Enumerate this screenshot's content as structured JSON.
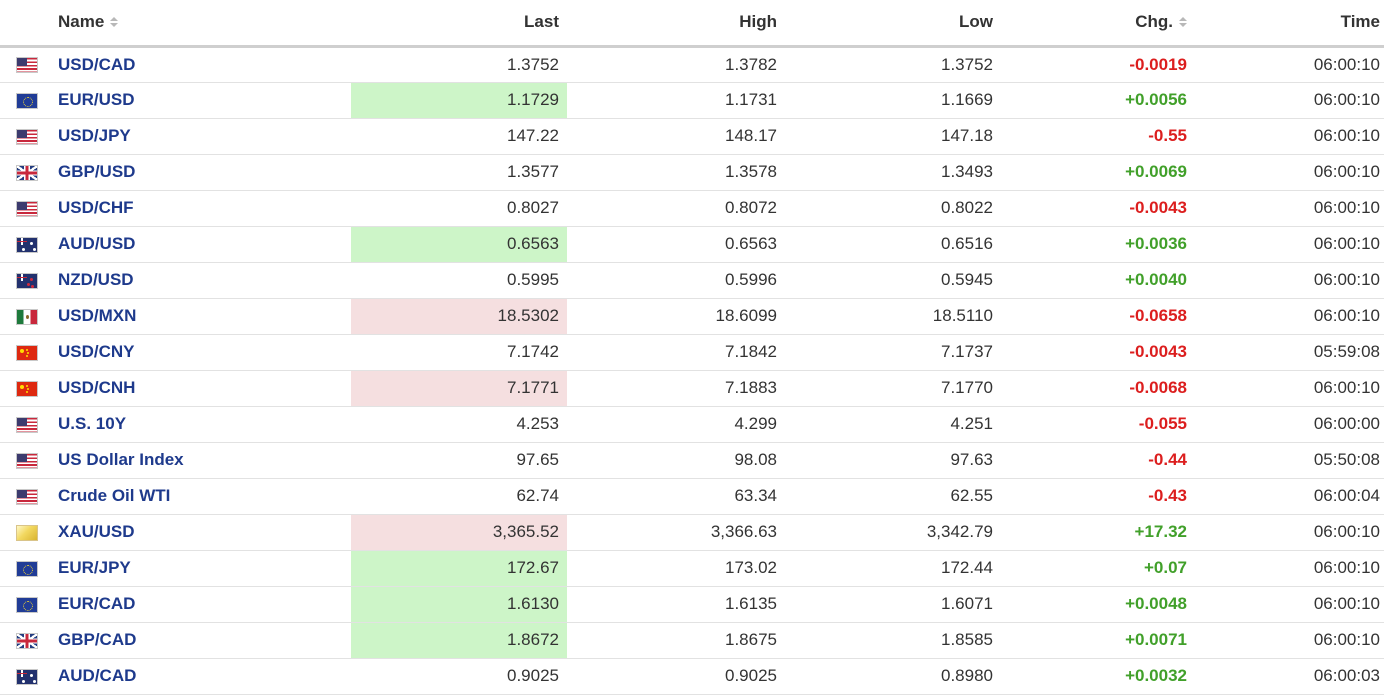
{
  "headers": {
    "name": "Name",
    "last": "Last",
    "high": "High",
    "low": "Low",
    "chg": "Chg.",
    "time": "Time"
  },
  "colors": {
    "link": "#1e3a8c",
    "negative": "#dc1e1e",
    "positive": "#41a02a",
    "last_up_highlight": "#cdf5c8",
    "last_down_highlight": "#f5dfe0"
  },
  "rows": [
    {
      "flag": "us-flag-icon",
      "name": "USD/CAD",
      "last": "1.3752",
      "high": "1.3782",
      "low": "1.3752",
      "chg": "-0.0019",
      "time": "06:00:10",
      "highlight": "none"
    },
    {
      "flag": "eu-flag-icon",
      "name": "EUR/USD",
      "last": "1.1729",
      "high": "1.1731",
      "low": "1.1669",
      "chg": "+0.0056",
      "time": "06:00:10",
      "highlight": "up"
    },
    {
      "flag": "us-flag-icon",
      "name": "USD/JPY",
      "last": "147.22",
      "high": "148.17",
      "low": "147.18",
      "chg": "-0.55",
      "time": "06:00:10",
      "highlight": "none"
    },
    {
      "flag": "gb-flag-icon",
      "name": "GBP/USD",
      "last": "1.3577",
      "high": "1.3578",
      "low": "1.3493",
      "chg": "+0.0069",
      "time": "06:00:10",
      "highlight": "none"
    },
    {
      "flag": "us-flag-icon",
      "name": "USD/CHF",
      "last": "0.8027",
      "high": "0.8072",
      "low": "0.8022",
      "chg": "-0.0043",
      "time": "06:00:10",
      "highlight": "none"
    },
    {
      "flag": "au-flag-icon",
      "name": "AUD/USD",
      "last": "0.6563",
      "high": "0.6563",
      "low": "0.6516",
      "chg": "+0.0036",
      "time": "06:00:10",
      "highlight": "up"
    },
    {
      "flag": "nz-flag-icon",
      "name": "NZD/USD",
      "last": "0.5995",
      "high": "0.5996",
      "low": "0.5945",
      "chg": "+0.0040",
      "time": "06:00:10",
      "highlight": "none"
    },
    {
      "flag": "mx-flag-icon",
      "name": "USD/MXN",
      "last": "18.5302",
      "high": "18.6099",
      "low": "18.5110",
      "chg": "-0.0658",
      "time": "06:00:10",
      "highlight": "down"
    },
    {
      "flag": "cn-flag-icon",
      "name": "USD/CNY",
      "last": "7.1742",
      "high": "7.1842",
      "low": "7.1737",
      "chg": "-0.0043",
      "time": "05:59:08",
      "highlight": "none"
    },
    {
      "flag": "cn-flag-icon",
      "name": "USD/CNH",
      "last": "7.1771",
      "high": "7.1883",
      "low": "7.1770",
      "chg": "-0.0068",
      "time": "06:00:10",
      "highlight": "down"
    },
    {
      "flag": "us-flag-icon",
      "name": "U.S. 10Y",
      "last": "4.253",
      "high": "4.299",
      "low": "4.251",
      "chg": "-0.055",
      "time": "06:00:00",
      "highlight": "none"
    },
    {
      "flag": "us-flag-icon",
      "name": "US Dollar Index",
      "last": "97.65",
      "high": "98.08",
      "low": "97.63",
      "chg": "-0.44",
      "time": "05:50:08",
      "highlight": "none"
    },
    {
      "flag": "us-flag-icon",
      "name": "Crude Oil WTI",
      "last": "62.74",
      "high": "63.34",
      "low": "62.55",
      "chg": "-0.43",
      "time": "06:00:04",
      "highlight": "none"
    },
    {
      "flag": "gold-icon",
      "name": "XAU/USD",
      "last": "3,365.52",
      "high": "3,366.63",
      "low": "3,342.79",
      "chg": "+17.32",
      "time": "06:00:10",
      "highlight": "down"
    },
    {
      "flag": "eu-flag-icon",
      "name": "EUR/JPY",
      "last": "172.67",
      "high": "173.02",
      "low": "172.44",
      "chg": "+0.07",
      "time": "06:00:10",
      "highlight": "up"
    },
    {
      "flag": "eu-flag-icon",
      "name": "EUR/CAD",
      "last": "1.6130",
      "high": "1.6135",
      "low": "1.6071",
      "chg": "+0.0048",
      "time": "06:00:10",
      "highlight": "up"
    },
    {
      "flag": "gb-flag-icon",
      "name": "GBP/CAD",
      "last": "1.8672",
      "high": "1.8675",
      "low": "1.8585",
      "chg": "+0.0071",
      "time": "06:00:10",
      "highlight": "up"
    },
    {
      "flag": "au-flag-icon",
      "name": "AUD/CAD",
      "last": "0.9025",
      "high": "0.9025",
      "low": "0.8980",
      "chg": "+0.0032",
      "time": "06:00:03",
      "highlight": "none"
    }
  ]
}
